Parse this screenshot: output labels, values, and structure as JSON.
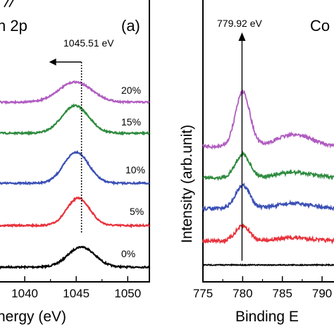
{
  "chart_data": [
    {
      "type": "line",
      "panel_label": "(a)",
      "series_label": "n 2p",
      "xlabel": "nergy (eV)",
      "xlim": [
        1037.6,
        1052.1
      ],
      "x_ticks": [
        "1040",
        "1045",
        "1050"
      ],
      "x_tick_values": [
        1040,
        1045,
        1050
      ],
      "peak_marker": {
        "label": "1045.51 eV",
        "x": 1045.51
      },
      "series": [
        {
          "name": "0%",
          "color": "#000000",
          "peak_x": 1045.5,
          "peak_height": 0.55,
          "width": 1.3
        },
        {
          "name": "5%",
          "color": "#e8323c",
          "peak_x": 1045.2,
          "peak_height": 0.75,
          "width": 1.1
        },
        {
          "name": "10%",
          "color": "#3a4fb5",
          "peak_x": 1045.0,
          "peak_height": 0.85,
          "width": 1.2
        },
        {
          "name": "15%",
          "color": "#2e8b3e",
          "peak_x": 1044.9,
          "peak_height": 0.75,
          "width": 1.3
        },
        {
          "name": "20%",
          "color": "#b05cc0",
          "peak_x": 1044.9,
          "peak_height": 0.55,
          "width": 1.6
        }
      ]
    },
    {
      "type": "line",
      "panel_label": "Co",
      "ylabel": "Intensity (arb.unit)",
      "xlabel": "Binding E",
      "xlim": [
        775,
        791.5
      ],
      "x_ticks": [
        "775",
        "780",
        "785",
        "790"
      ],
      "x_tick_values": [
        775,
        780,
        785,
        790
      ],
      "peak_marker": {
        "label": "779.92 eV",
        "x": 779.92
      },
      "series": [
        {
          "name": "0%",
          "color": "#000000",
          "peak_x": 780.0,
          "peak_height": 0.0
        },
        {
          "name": "5%",
          "color": "#e8323c",
          "peak_x": 780.0,
          "peak_height": 0.35
        },
        {
          "name": "10%",
          "color": "#3a4fb5",
          "peak_x": 780.0,
          "peak_height": 0.55
        },
        {
          "name": "15%",
          "color": "#2e8b3e",
          "peak_x": 780.0,
          "peak_height": 0.55
        },
        {
          "name": "20%",
          "color": "#b05cc0",
          "peak_x": 780.0,
          "peak_height": 1.3
        }
      ]
    }
  ]
}
